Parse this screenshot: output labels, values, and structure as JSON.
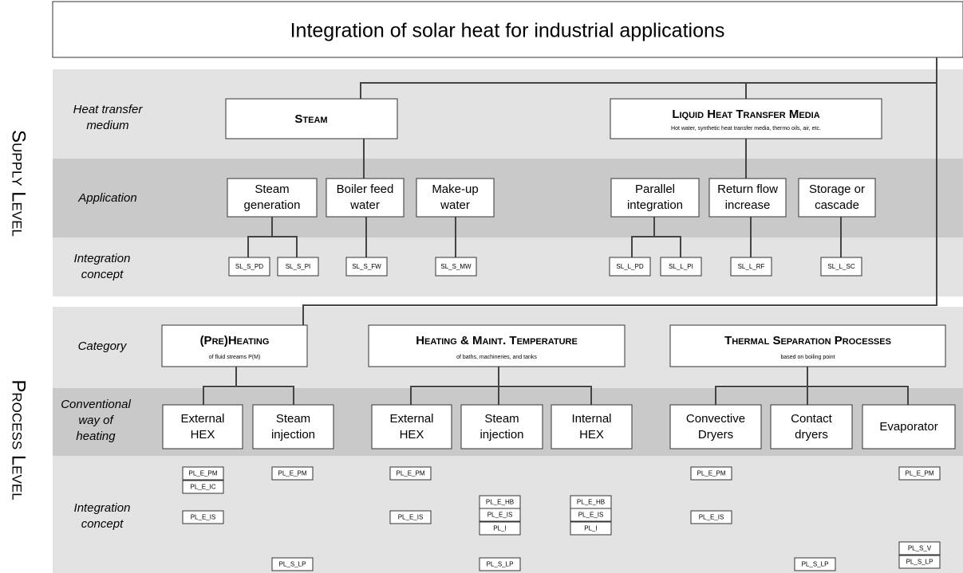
{
  "title": "Integration of solar heat for industrial applications",
  "levels": {
    "supply": "Supply Level",
    "process": "Process Level"
  },
  "supply": {
    "row_labels": [
      [
        "Heat transfer",
        "medium"
      ],
      [
        "Application"
      ],
      [
        "Integration",
        "concept"
      ]
    ],
    "media": [
      {
        "name": "Steam"
      },
      {
        "name": "Liquid Heat Transfer Media",
        "note": "Hot water, synthetic heat transfer media, thermo oils, air, etc."
      }
    ],
    "applications": [
      [
        "Steam",
        "generation"
      ],
      [
        "Boiler feed",
        "water"
      ],
      [
        "Make-up",
        "water"
      ],
      [
        "Parallel",
        "integration"
      ],
      [
        "Return flow",
        "increase"
      ],
      [
        "Storage or",
        "cascade"
      ]
    ],
    "concepts": [
      "SL_S_PD",
      "SL_S_PI",
      "SL_S_FW",
      "SL_S_MW",
      "SL_L_PD",
      "SL_L_PI",
      "SL_L_RF",
      "SL_L_SC"
    ]
  },
  "process": {
    "row_labels": [
      [
        "Category"
      ],
      [
        "Conventional",
        "way of",
        "heating"
      ],
      [
        "Integration",
        "concept"
      ]
    ],
    "categories": [
      {
        "name": "(Pre)Heating",
        "note": "of fluid streams P(M)"
      },
      {
        "name": "Heating & Maint. Temperature",
        "note": "of baths, machineries, and tanks"
      },
      {
        "name": "Thermal Separation Processes",
        "note": "based on  boiling point"
      }
    ],
    "heating": [
      [
        "External",
        "HEX"
      ],
      [
        "Steam",
        "injection"
      ],
      [
        "External",
        "HEX"
      ],
      [
        "Steam",
        "injection"
      ],
      [
        "Internal",
        "HEX"
      ],
      [
        "Convective",
        "Dryers"
      ],
      [
        "Contact",
        "dryers"
      ],
      [
        "Evaporator"
      ]
    ],
    "concepts": [
      [
        "PL_E_PM",
        "PL_E_IC",
        "PL_E_IS"
      ],
      [
        "PL_E_PM",
        "PL_S_LP"
      ],
      [
        "PL_E_PM",
        "PL_E_IS"
      ],
      [
        "PL_E_HB",
        "PL_E_IS",
        "PL_I",
        "PL_S_LP"
      ],
      [
        "PL_E_HB",
        "PL_E_IS",
        "PL_I"
      ],
      [
        "PL_E_PM",
        "PL_E_IS"
      ],
      [
        "PL_S_LP"
      ],
      [
        "PL_E_PM",
        "PL_S_V",
        "PL_S_LP"
      ]
    ]
  }
}
